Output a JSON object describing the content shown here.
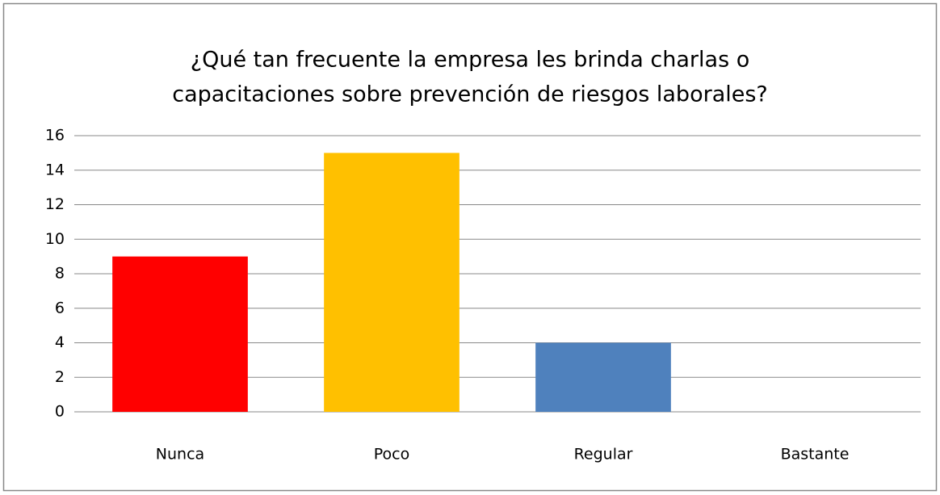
{
  "chart_data": {
    "type": "bar",
    "title": [
      "¿Qué tan frecuente la empresa les brinda charlas o",
      "capacitaciones sobre prevención de riesgos laborales?"
    ],
    "categories": [
      "Nunca",
      "Poco",
      "Regular",
      "Bastante"
    ],
    "values": [
      9,
      15,
      4,
      0
    ],
    "colors": [
      "#ff0000",
      "#ffc000",
      "#4f81bd",
      "#9bbb59"
    ],
    "ylim": [
      0,
      16
    ],
    "yticks": [
      0,
      2,
      4,
      6,
      8,
      10,
      12,
      14,
      16
    ],
    "grid": true
  }
}
